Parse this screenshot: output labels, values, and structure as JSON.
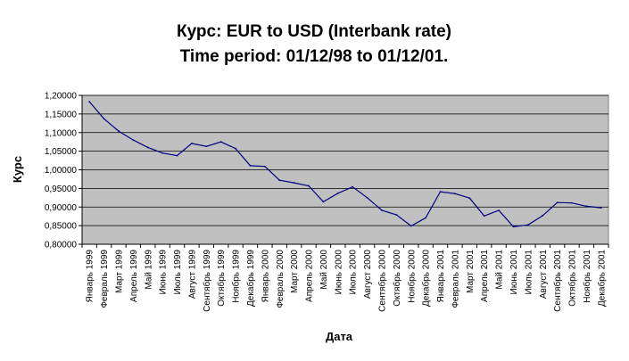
{
  "chart_data": {
    "type": "line",
    "title": "Курс: EUR to USD (Interbank rate)",
    "subtitle": "Time period: 01/12/98 to 01/12/01.",
    "xlabel": "Дата",
    "ylabel": "Курс",
    "ylim": [
      0.8,
      1.2
    ],
    "ytick_step": 0.05,
    "ytick_labels": [
      "0,80000",
      "0,85000",
      "0,90000",
      "0,95000",
      "1,00000",
      "1,05000",
      "1,10000",
      "1,15000",
      "1,20000"
    ],
    "grid": true,
    "legend": "none",
    "colors": {
      "line": "#000080",
      "plot_bg": "#c0c0c0",
      "grid": "#000000"
    },
    "categories": [
      "Январь 1999",
      "Февраль 1999",
      "Март 1999",
      "Апрель 1999",
      "Май 1999",
      "Июнь 1999",
      "Июль 1999",
      "Август 1999",
      "Сентябрь 1999",
      "Октябрь 1999",
      "Ноябрь 1999",
      "Декабрь 1999",
      "Январь 2000",
      "Февраль 2000",
      "Март 2000",
      "Апрель 2000",
      "Май 2000",
      "Июнь 2000",
      "Июль 2000",
      "Август 2000",
      "Сентябрь 2000",
      "Октябрь 2000",
      "Ноябрь 2000",
      "Декабрь 2000",
      "Январь 2001",
      "Февраль 2001",
      "Март 2001",
      "Апрель 2001",
      "Май 2001",
      "Июнь 2001",
      "Июль 2001",
      "Август 2001",
      "Сентябрь 2001",
      "Октябрь 2001",
      "Ноябрь 2001",
      "Декабрь 2001"
    ],
    "values": [
      1.183,
      1.137,
      1.104,
      1.08,
      1.06,
      1.045,
      1.038,
      1.071,
      1.063,
      1.075,
      1.057,
      1.011,
      1.009,
      0.972,
      0.965,
      0.957,
      0.914,
      0.937,
      0.954,
      0.925,
      0.891,
      0.879,
      0.849,
      0.871,
      0.941,
      0.936,
      0.924,
      0.876,
      0.891,
      0.847,
      0.852,
      0.877,
      0.912,
      0.911,
      0.902,
      0.898
    ]
  }
}
